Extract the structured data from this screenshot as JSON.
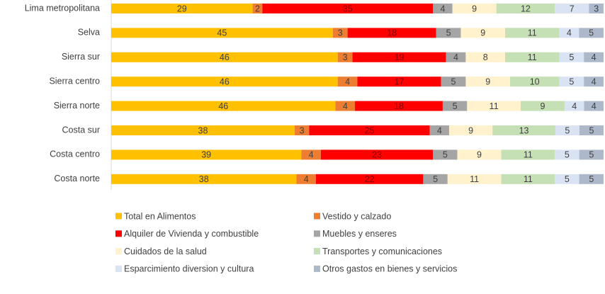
{
  "chart_data": {
    "type": "bar",
    "orientation": "horizontal",
    "stacking": "percent",
    "categories": [
      "Lima metropolitana",
      "Selva",
      "Sierra sur",
      "Sierra centro",
      "Sierra norte",
      "Costa sur",
      "Costa centro",
      "Costa norte"
    ],
    "series": [
      {
        "name": "Total en Alimentos",
        "color": "#ffc000",
        "values": [
          29,
          45,
          46,
          46,
          46,
          38,
          39,
          38
        ]
      },
      {
        "name": "Vestido y calzado",
        "color": "#ed7d31",
        "values": [
          2,
          3,
          3,
          4,
          4,
          3,
          4,
          4
        ]
      },
      {
        "name": "Alquiler de Vivienda y combustible",
        "color": "#ff0000",
        "values": [
          35,
          18,
          19,
          17,
          18,
          25,
          23,
          22
        ]
      },
      {
        "name": "Muebles y enseres",
        "color": "#a5a5a5",
        "values": [
          4,
          5,
          4,
          5,
          5,
          4,
          5,
          5
        ]
      },
      {
        "name": "Cuidados de la salud",
        "color": "#fff2cc",
        "values": [
          9,
          9,
          8,
          9,
          11,
          9,
          9,
          11
        ]
      },
      {
        "name": "Transportes y comunicaciones",
        "color": "#c5e0b4",
        "values": [
          12,
          11,
          11,
          10,
          9,
          13,
          11,
          11
        ]
      },
      {
        "name": "Esparcimiento diversion y cultura",
        "color": "#dae3f3",
        "values": [
          7,
          4,
          5,
          5,
          4,
          5,
          5,
          5
        ]
      },
      {
        "name": "Otros gastos en bienes y servicios",
        "color": "#adb9ca",
        "values": [
          3,
          5,
          4,
          4,
          4,
          5,
          5,
          5
        ]
      }
    ],
    "legend": "bottom"
  }
}
